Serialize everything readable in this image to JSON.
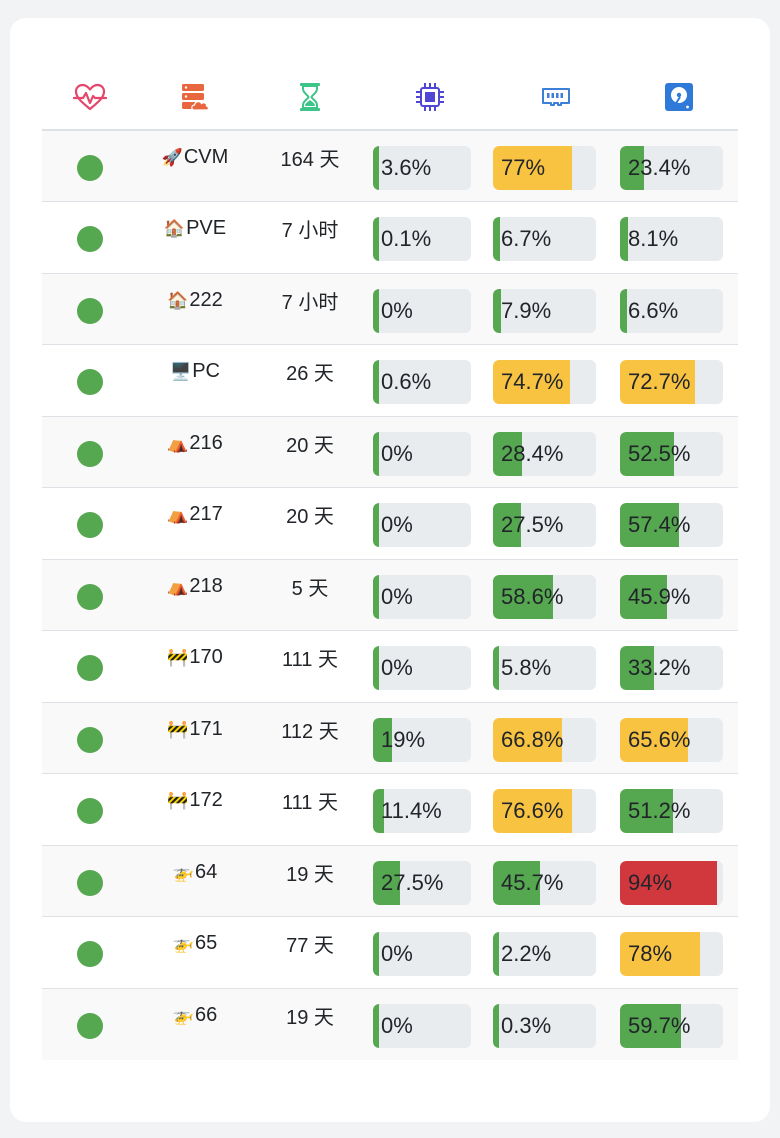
{
  "header": {
    "icons": [
      "heartbeat-icon",
      "server-cloud-icon",
      "hourglass-icon",
      "cpu-icon",
      "memory-icon",
      "disk-icon"
    ],
    "icon_colors": {
      "heartbeat": "#e5466b",
      "server": "#e8673e",
      "hourglass": "#3cc489",
      "cpu": "#4f46d6",
      "memory": "#3b7fd6",
      "disk": "#2f7ad8"
    }
  },
  "colors": {
    "online": "#55a750",
    "ok": "#55a750",
    "warn": "#f9c342",
    "danger": "#d0383e",
    "track": "#e9ecef"
  },
  "rows": [
    {
      "emoji": "🚀",
      "name": "CVM",
      "uptime": "164 天",
      "cpu": "3.6%",
      "cpu_v": 3.6,
      "mem": "77%",
      "mem_v": 77,
      "disk": "23.4%",
      "disk_v": 23.4
    },
    {
      "emoji": "🏠",
      "name": "PVE",
      "uptime": "7 小时",
      "cpu": "0.1%",
      "cpu_v": 0.1,
      "mem": "6.7%",
      "mem_v": 6.7,
      "disk": "8.1%",
      "disk_v": 8.1
    },
    {
      "emoji": "🏠",
      "name": "222",
      "uptime": "7 小时",
      "cpu": "0%",
      "cpu_v": 0,
      "mem": "7.9%",
      "mem_v": 7.9,
      "disk": "6.6%",
      "disk_v": 6.6
    },
    {
      "emoji": "🖥️",
      "name": "PC",
      "uptime": "26 天",
      "cpu": "0.6%",
      "cpu_v": 0.6,
      "mem": "74.7%",
      "mem_v": 74.7,
      "disk": "72.7%",
      "disk_v": 72.7
    },
    {
      "emoji": "⛺",
      "name": "216",
      "uptime": "20 天",
      "cpu": "0%",
      "cpu_v": 0,
      "mem": "28.4%",
      "mem_v": 28.4,
      "disk": "52.5%",
      "disk_v": 52.5
    },
    {
      "emoji": "⛺",
      "name": "217",
      "uptime": "20 天",
      "cpu": "0%",
      "cpu_v": 0,
      "mem": "27.5%",
      "mem_v": 27.5,
      "disk": "57.4%",
      "disk_v": 57.4
    },
    {
      "emoji": "⛺",
      "name": "218",
      "uptime": "5 天",
      "cpu": "0%",
      "cpu_v": 0,
      "mem": "58.6%",
      "mem_v": 58.6,
      "disk": "45.9%",
      "disk_v": 45.9
    },
    {
      "emoji": "🚧",
      "name": "170",
      "uptime": "111 天",
      "cpu": "0%",
      "cpu_v": 0,
      "mem": "5.8%",
      "mem_v": 5.8,
      "disk": "33.2%",
      "disk_v": 33.2
    },
    {
      "emoji": "🚧",
      "name": "171",
      "uptime": "112 天",
      "cpu": "19%",
      "cpu_v": 19,
      "mem": "66.8%",
      "mem_v": 66.8,
      "disk": "65.6%",
      "disk_v": 65.6
    },
    {
      "emoji": "🚧",
      "name": "172",
      "uptime": "111 天",
      "cpu": "11.4%",
      "cpu_v": 11.4,
      "mem": "76.6%",
      "mem_v": 76.6,
      "disk": "51.2%",
      "disk_v": 51.2
    },
    {
      "emoji": "🚁",
      "name": "64",
      "uptime": "19 天",
      "cpu": "27.5%",
      "cpu_v": 27.5,
      "mem": "45.7%",
      "mem_v": 45.7,
      "disk": "94%",
      "disk_v": 94
    },
    {
      "emoji": "🚁",
      "name": "65",
      "uptime": "77 天",
      "cpu": "0%",
      "cpu_v": 0,
      "mem": "2.2%",
      "mem_v": 2.2,
      "disk": "78%",
      "disk_v": 78
    },
    {
      "emoji": "🚁",
      "name": "66",
      "uptime": "19 天",
      "cpu": "0%",
      "cpu_v": 0,
      "mem": "0.3%",
      "mem_v": 0.3,
      "disk": "59.7%",
      "disk_v": 59.7
    }
  ]
}
